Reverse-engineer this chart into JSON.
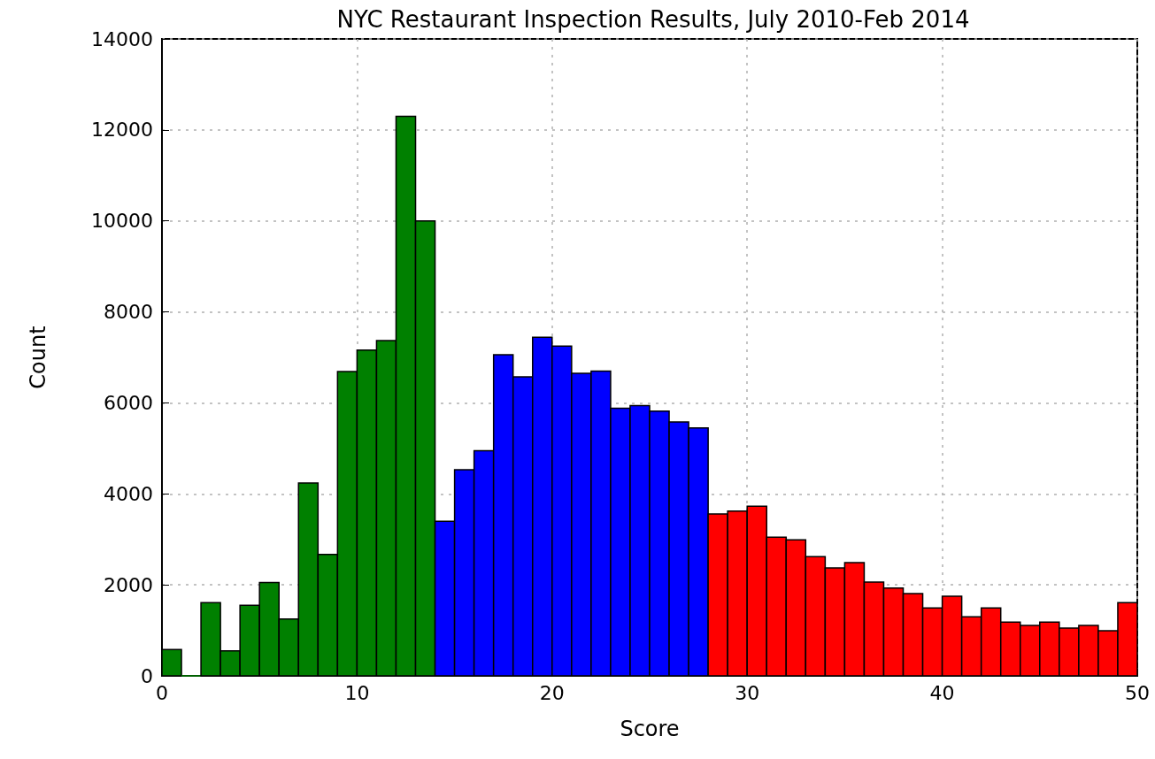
{
  "chart_data": {
    "type": "histogram",
    "title": "NYC Restaurant Inspection Results, July 2010-Feb 2014",
    "xlabel": "Score",
    "ylabel": "Count",
    "bins": [
      0,
      1,
      2,
      3,
      4,
      5,
      6,
      7,
      8,
      9,
      10,
      11,
      12,
      13,
      14,
      15,
      16,
      17,
      18,
      19,
      20,
      21,
      22,
      23,
      24,
      25,
      26,
      27,
      28,
      29,
      30,
      31,
      32,
      33,
      34,
      35,
      36,
      37,
      38,
      39,
      40,
      41,
      42,
      43,
      44,
      45,
      46,
      47,
      48,
      49,
      50
    ],
    "values": [
      580,
      0,
      1610,
      550,
      1550,
      2050,
      1250,
      4240,
      2670,
      6690,
      7160,
      7370,
      12300,
      10000,
      3400,
      4530,
      4950,
      7060,
      6570,
      7440,
      7250,
      6650,
      6700,
      5880,
      5940,
      5820,
      5580,
      5450,
      3560,
      3620,
      3730,
      3050,
      2990,
      2620,
      2370,
      2490,
      2060,
      1930,
      1810,
      1490,
      1750,
      1300,
      1490,
      1180,
      1110,
      1180,
      1050,
      1110,
      990,
      1610
    ],
    "colors": [
      "#008000",
      "#008000",
      "#008000",
      "#008000",
      "#008000",
      "#008000",
      "#008000",
      "#008000",
      "#008000",
      "#008000",
      "#008000",
      "#008000",
      "#008000",
      "#008000",
      "#0000ff",
      "#0000ff",
      "#0000ff",
      "#0000ff",
      "#0000ff",
      "#0000ff",
      "#0000ff",
      "#0000ff",
      "#0000ff",
      "#0000ff",
      "#0000ff",
      "#0000ff",
      "#0000ff",
      "#0000ff",
      "#ff0000",
      "#ff0000",
      "#ff0000",
      "#ff0000",
      "#ff0000",
      "#ff0000",
      "#ff0000",
      "#ff0000",
      "#ff0000",
      "#ff0000",
      "#ff0000",
      "#ff0000",
      "#ff0000",
      "#ff0000",
      "#ff0000",
      "#ff0000",
      "#ff0000",
      "#ff0000",
      "#ff0000",
      "#ff0000",
      "#ff0000",
      "#ff0000"
    ],
    "xlim": [
      0,
      50
    ],
    "xticks": [
      0,
      10,
      20,
      30,
      40,
      50
    ],
    "ylim": [
      0,
      14000
    ],
    "yticks": [
      0,
      2000,
      4000,
      6000,
      8000,
      10000,
      12000,
      14000
    ],
    "grid": true
  }
}
